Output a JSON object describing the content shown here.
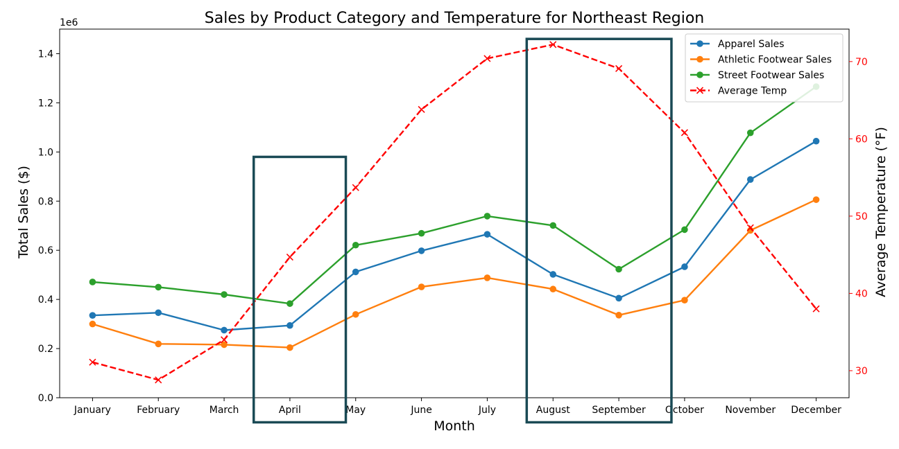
{
  "chart_data": {
    "type": "line",
    "title": "Sales by Product Category and Temperature for Northeast Region",
    "xlabel": "Month",
    "ylabel": "Total Sales ($)",
    "ylabel_right": "Average Temperature (°F)",
    "y_multiplier_label": "1e6",
    "categories": [
      "January",
      "February",
      "March",
      "April",
      "May",
      "June",
      "July",
      "August",
      "September",
      "October",
      "November",
      "December"
    ],
    "ylim": [
      0,
      1.5
    ],
    "y_ticks": [
      0.0,
      0.2,
      0.4,
      0.6,
      0.8,
      1.0,
      1.2,
      1.4
    ],
    "y_tick_labels": [
      "0.0",
      "0.2",
      "0.4",
      "0.6",
      "0.8",
      "1.0",
      "1.2",
      "1.4"
    ],
    "ylim_right": [
      26.5,
      74.2
    ],
    "y_ticks_right": [
      30,
      40,
      50,
      60,
      70
    ],
    "y_tick_labels_right": [
      "30",
      "40",
      "50",
      "60",
      "70"
    ],
    "grid": false,
    "legend_position": "top-right",
    "series": [
      {
        "name": "Apparel Sales",
        "color": "#1f77b4",
        "axis": "left",
        "marker": "circle",
        "line_style": "solid",
        "values": [
          0.335,
          0.346,
          0.275,
          0.294,
          0.512,
          0.598,
          0.665,
          0.502,
          0.405,
          0.533,
          0.888,
          1.044
        ]
      },
      {
        "name": "Athletic Footwear Sales",
        "color": "#ff7f0e",
        "axis": "left",
        "marker": "circle",
        "line_style": "solid",
        "values": [
          0.3,
          0.219,
          0.216,
          0.204,
          0.339,
          0.451,
          0.488,
          0.442,
          0.336,
          0.397,
          0.681,
          0.806
        ]
      },
      {
        "name": "Street Footwear Sales",
        "color": "#2ca02c",
        "axis": "left",
        "marker": "circle",
        "line_style": "solid",
        "values": [
          0.471,
          0.45,
          0.42,
          0.383,
          0.621,
          0.669,
          0.739,
          0.701,
          0.523,
          0.684,
          1.078,
          1.266
        ]
      },
      {
        "name": "Average Temp",
        "color": "#ff0000",
        "axis": "right",
        "marker": "x",
        "line_style": "dashed",
        "values": [
          31.1,
          28.8,
          34.0,
          44.7,
          53.7,
          63.8,
          70.4,
          72.2,
          69.1,
          60.8,
          48.5,
          38.0
        ]
      }
    ],
    "highlight_boxes": [
      {
        "x_start": 2.45,
        "x_end": 3.85,
        "y_top": 0.98,
        "y_bottom": -0.1,
        "color": "#1a4a55"
      },
      {
        "x_start": 6.6,
        "x_end": 8.8,
        "y_top": 1.46,
        "y_bottom": -0.1,
        "color": "#1a4a55"
      }
    ],
    "tick_color_right": "#ff0000"
  }
}
